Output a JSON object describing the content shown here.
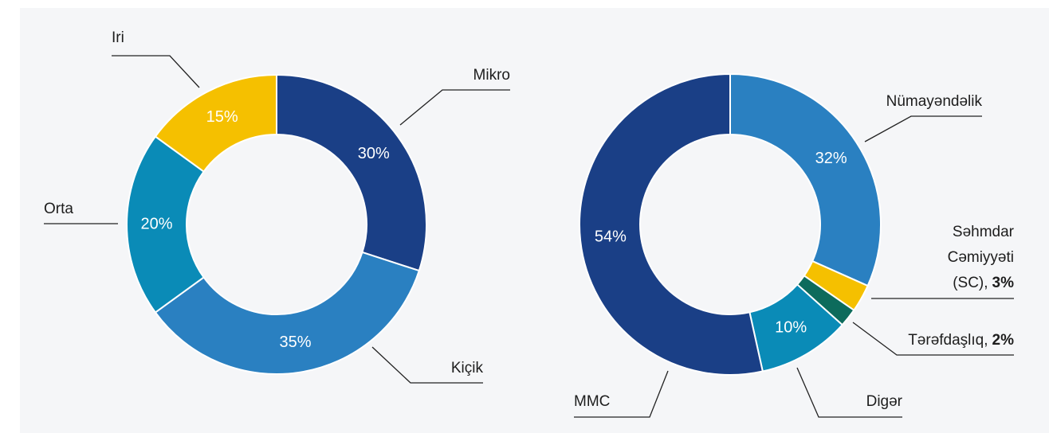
{
  "chart_data": [
    {
      "type": "donut",
      "categories": [
        "Mikro",
        "Kiçik",
        "Orta",
        "Iri"
      ],
      "values": [
        30,
        35,
        20,
        15
      ],
      "value_labels": [
        "30%",
        "35%",
        "20%",
        "15%"
      ],
      "colors": [
        "#1a3f86",
        "#2a80c1",
        "#0a8bb7",
        "#f5c000"
      ]
    },
    {
      "type": "donut",
      "categories": [
        "Nümayəndəlik",
        "Səhmdar Cəmiyyəti (SC),",
        "Tərəfdaşlıq,",
        "Digər",
        "MMC"
      ],
      "values": [
        32,
        3,
        2,
        10,
        54
      ],
      "value_labels": [
        "32%",
        "3%",
        "2%",
        "10%",
        "54%"
      ],
      "colors": [
        "#2a80c1",
        "#f5c000",
        "#0d6b5c",
        "#0a8bb7",
        "#1a3f86"
      ]
    }
  ]
}
